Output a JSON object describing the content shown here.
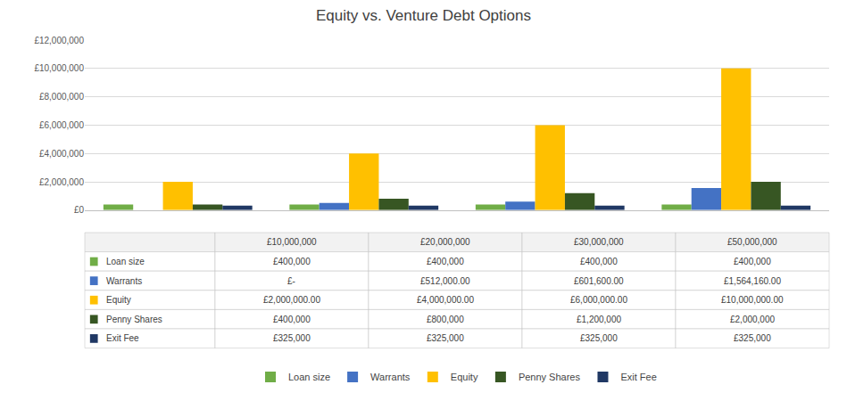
{
  "chart_data": {
    "type": "bar",
    "title": "Equity vs. Venture Debt Options",
    "categories": [
      "£10,000,000",
      "£20,000,000",
      "£30,000,000",
      "£50,000,000"
    ],
    "series": [
      {
        "name": "Loan size",
        "color": "#70ad47",
        "values": [
          400000,
          400000,
          400000,
          400000
        ],
        "table_cells": [
          "£400,000",
          "£400,000",
          "£400,000",
          "£400,000"
        ]
      },
      {
        "name": "Warrants",
        "color": "#4472c4",
        "values": [
          0,
          512000,
          601600,
          1564160
        ],
        "table_cells": [
          "£-",
          "£512,000.00",
          "£601,600.00",
          "£1,564,160.00"
        ]
      },
      {
        "name": "Equity",
        "color": "#ffc000",
        "values": [
          2000000,
          4000000,
          6000000,
          10000000
        ],
        "table_cells": [
          "£2,000,000.00",
          "£4,000,000.00",
          "£6,000,000.00",
          "£10,000,000.00"
        ]
      },
      {
        "name": "Penny Shares",
        "color": "#375623",
        "values": [
          400000,
          800000,
          1200000,
          2000000
        ],
        "table_cells": [
          "£400,000",
          "£800,000",
          "£1,200,000",
          "£2,000,000"
        ]
      },
      {
        "name": "Exit Fee",
        "color": "#203864",
        "values": [
          325000,
          325000,
          325000,
          325000
        ],
        "table_cells": [
          "£325,000",
          "£325,000",
          "£325,000",
          "£325,000"
        ]
      }
    ],
    "ylim": [
      0,
      12000000
    ],
    "yticks": [
      {
        "value": 0,
        "label": "£0"
      },
      {
        "value": 2000000,
        "label": "£2,000,000"
      },
      {
        "value": 4000000,
        "label": "£4,000,000"
      },
      {
        "value": 6000000,
        "label": "£6,000,000"
      },
      {
        "value": 8000000,
        "label": "£8,000,000"
      },
      {
        "value": 10000000,
        "label": "£10,000,000"
      },
      {
        "value": 12000000,
        "label": "£12,000,000"
      }
    ],
    "grid": true,
    "legend": "bottom",
    "tick_labels": "y"
  }
}
